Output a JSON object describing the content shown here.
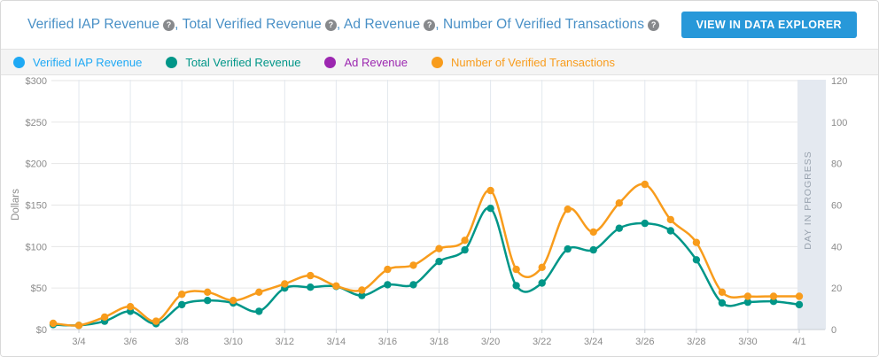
{
  "header": {
    "title_segments": [
      {
        "label": "Verified IAP Revenue"
      },
      {
        "label": "Total Verified Revenue"
      },
      {
        "label": "Ad Revenue"
      },
      {
        "label": "Number Of Verified Transactions"
      }
    ],
    "separator": ", ",
    "help_icon_glyph": "?",
    "button_label": "VIEW IN DATA EXPLORER",
    "title_color": "#4990c6",
    "button_color": "#2798d9"
  },
  "legend": {
    "items": [
      {
        "label": "Verified IAP Revenue",
        "color": "#1fa9f4"
      },
      {
        "label": "Total Verified Revenue",
        "color": "#009688"
      },
      {
        "label": "Ad Revenue",
        "color": "#9c27b0"
      },
      {
        "label": "Number of Verified Transactions",
        "color": "#f89c1c"
      }
    ]
  },
  "chart_data": {
    "type": "line",
    "x": [
      "3/3",
      "3/4",
      "3/5",
      "3/6",
      "3/7",
      "3/8",
      "3/9",
      "3/10",
      "3/11",
      "3/12",
      "3/13",
      "3/14",
      "3/15",
      "3/16",
      "3/17",
      "3/18",
      "3/19",
      "3/20",
      "3/21",
      "3/22",
      "3/23",
      "3/24",
      "3/25",
      "3/26",
      "3/27",
      "3/28",
      "3/29",
      "3/30",
      "3/31",
      "4/1"
    ],
    "x_tick_labels": [
      "3/4",
      "3/6",
      "3/8",
      "3/10",
      "3/12",
      "3/14",
      "3/16",
      "3/18",
      "3/20",
      "3/22",
      "3/24",
      "3/26",
      "3/28",
      "3/30",
      "4/1"
    ],
    "left_axis": {
      "label": "Dollars",
      "min": 0,
      "max": 300,
      "tick_labels": [
        "$0",
        "$50",
        "$100",
        "$150",
        "$200",
        "$250",
        "$300"
      ]
    },
    "right_axis": {
      "min": 0,
      "max": 120,
      "tick_labels": [
        "0",
        "20",
        "40",
        "60",
        "80",
        "100",
        "120"
      ]
    },
    "grid": true,
    "legend_position": "top",
    "series": [
      {
        "name": "Total Verified Revenue",
        "axis": "left",
        "color": "#009688",
        "values": [
          6,
          5,
          10,
          22,
          7,
          30,
          35,
          32,
          22,
          50,
          51,
          52,
          41,
          54,
          54,
          82,
          96,
          146,
          53,
          56,
          97,
          96,
          122,
          128,
          119,
          84,
          32,
          33,
          34,
          30
        ]
      },
      {
        "name": "Number of Verified Transactions",
        "axis": "right",
        "color": "#f89c1c",
        "values": [
          3,
          2,
          6,
          11,
          4,
          17,
          18,
          14,
          18,
          22,
          26,
          21,
          19,
          29,
          31,
          39,
          43,
          67,
          29,
          30,
          58,
          47,
          61,
          70,
          53,
          42,
          18,
          16,
          16,
          16
        ]
      }
    ],
    "annotations": {
      "day_in_progress": {
        "label": "DAY IN PROGRESS",
        "x": "4/1",
        "band_color": "#e4e9f0",
        "text_color": "#98a2ae"
      }
    },
    "axis_text_color": "#8b8b8b"
  }
}
